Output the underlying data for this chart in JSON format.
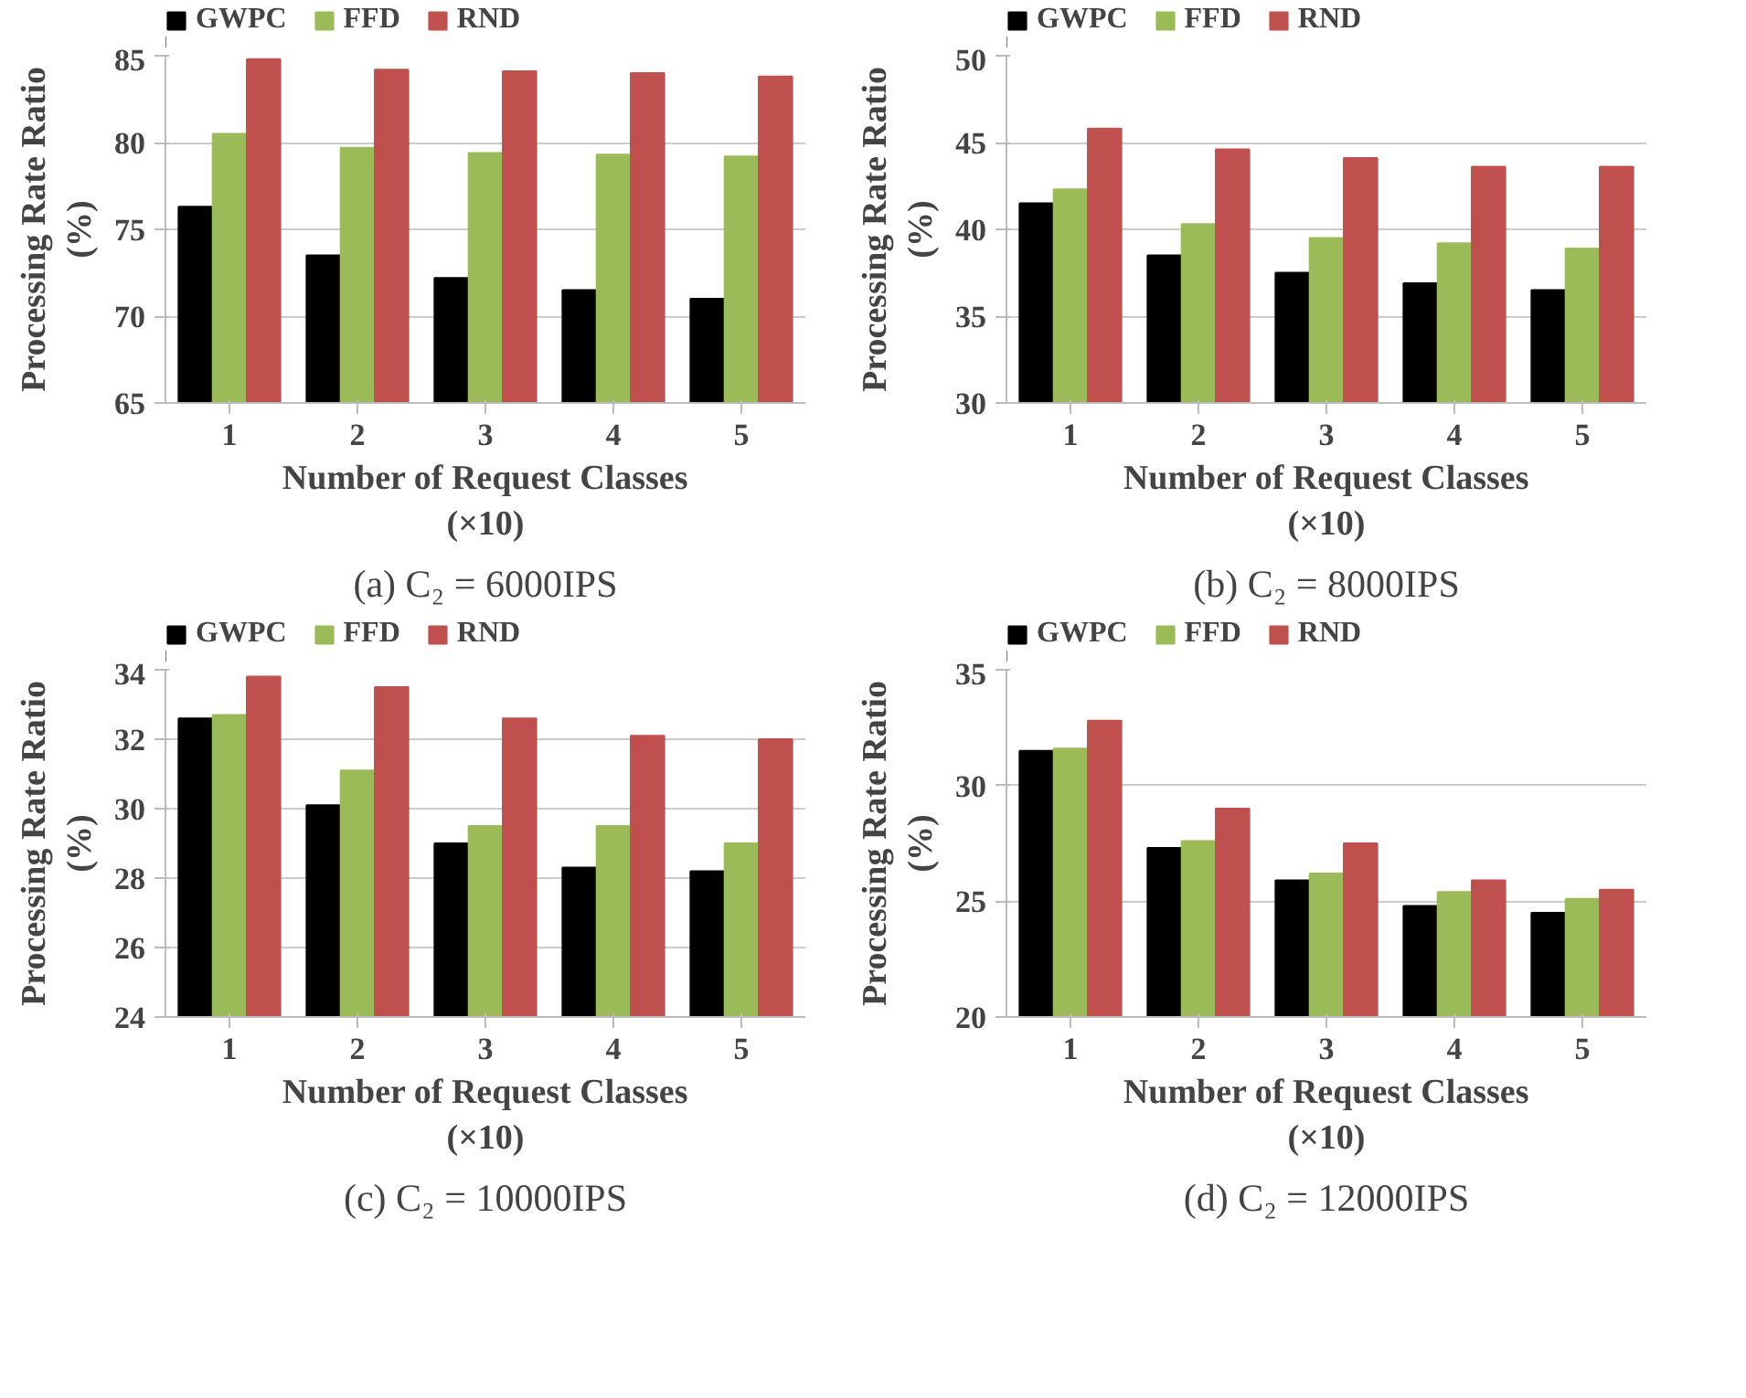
{
  "chart_data": [
    {
      "type": "bar",
      "categories": [
        "1",
        "2",
        "3",
        "4",
        "5"
      ],
      "xlabel": "Number of Request Classes (×10)",
      "ylabel": "Processing Rate Ratio (%)",
      "ylim": [
        65,
        85
      ],
      "yticks": [
        65,
        70,
        75,
        80,
        85
      ],
      "grid": "y",
      "legend": "top",
      "annotations": [
        "(a) C₂ = 6000IPS"
      ],
      "series": [
        {
          "name": "GWPC",
          "color": "#000000",
          "values": [
            76.3,
            73.5,
            72.2,
            71.5,
            71.0
          ]
        },
        {
          "name": "FFD",
          "color": "#9bbb59",
          "values": [
            80.5,
            79.7,
            79.4,
            79.3,
            79.2
          ]
        },
        {
          "name": "RND",
          "color": "#c0504d",
          "values": [
            84.8,
            84.2,
            84.1,
            84.0,
            83.8
          ]
        }
      ]
    },
    {
      "type": "bar",
      "categories": [
        "1",
        "2",
        "3",
        "4",
        "5"
      ],
      "xlabel": "Number of Request Classes (×10)",
      "ylabel": "Processing Rate Ratio (%)",
      "ylim": [
        30,
        50
      ],
      "yticks": [
        30,
        35,
        40,
        45,
        50
      ],
      "grid": "y",
      "legend": "top",
      "annotations": [
        "(b) C₂ = 8000IPS"
      ],
      "series": [
        {
          "name": "GWPC",
          "color": "#000000",
          "values": [
            41.5,
            38.5,
            37.5,
            36.9,
            36.5
          ]
        },
        {
          "name": "FFD",
          "color": "#9bbb59",
          "values": [
            42.3,
            40.3,
            39.5,
            39.2,
            38.9
          ]
        },
        {
          "name": "RND",
          "color": "#c0504d",
          "values": [
            45.8,
            44.6,
            44.1,
            43.6,
            43.6
          ]
        }
      ]
    },
    {
      "type": "bar",
      "categories": [
        "1",
        "2",
        "3",
        "4",
        "5"
      ],
      "xlabel": "Number of Request Classes (×10)",
      "ylabel": "Processing Rate Ratio (%)",
      "ylim": [
        24,
        34
      ],
      "yticks": [
        24,
        26,
        28,
        30,
        32,
        34
      ],
      "grid": "y",
      "legend": "top",
      "annotations": [
        "(c) C₂ = 10000IPS"
      ],
      "series": [
        {
          "name": "GWPC",
          "color": "#000000",
          "values": [
            32.6,
            30.1,
            29.0,
            28.3,
            28.2
          ]
        },
        {
          "name": "FFD",
          "color": "#9bbb59",
          "values": [
            32.7,
            31.1,
            29.5,
            29.5,
            29.0
          ]
        },
        {
          "name": "RND",
          "color": "#c0504d",
          "values": [
            33.8,
            33.5,
            32.6,
            32.1,
            32.0
          ]
        }
      ]
    },
    {
      "type": "bar",
      "categories": [
        "1",
        "2",
        "3",
        "4",
        "5"
      ],
      "xlabel": "Number of Request Classes (×10)",
      "ylabel": "Processing Rate Ratio (%)",
      "ylim": [
        20,
        35
      ],
      "yticks": [
        20,
        25,
        30,
        35
      ],
      "grid": "y",
      "legend": "top",
      "annotations": [
        "(d) C₂ = 12000IPS"
      ],
      "series": [
        {
          "name": "GWPC",
          "color": "#000000",
          "values": [
            31.5,
            27.3,
            25.9,
            24.8,
            24.5
          ]
        },
        {
          "name": "FFD",
          "color": "#9bbb59",
          "values": [
            31.6,
            27.6,
            26.2,
            25.4,
            25.1
          ]
        },
        {
          "name": "RND",
          "color": "#c0504d",
          "values": [
            32.8,
            29.0,
            27.5,
            25.9,
            25.5
          ]
        }
      ]
    }
  ]
}
